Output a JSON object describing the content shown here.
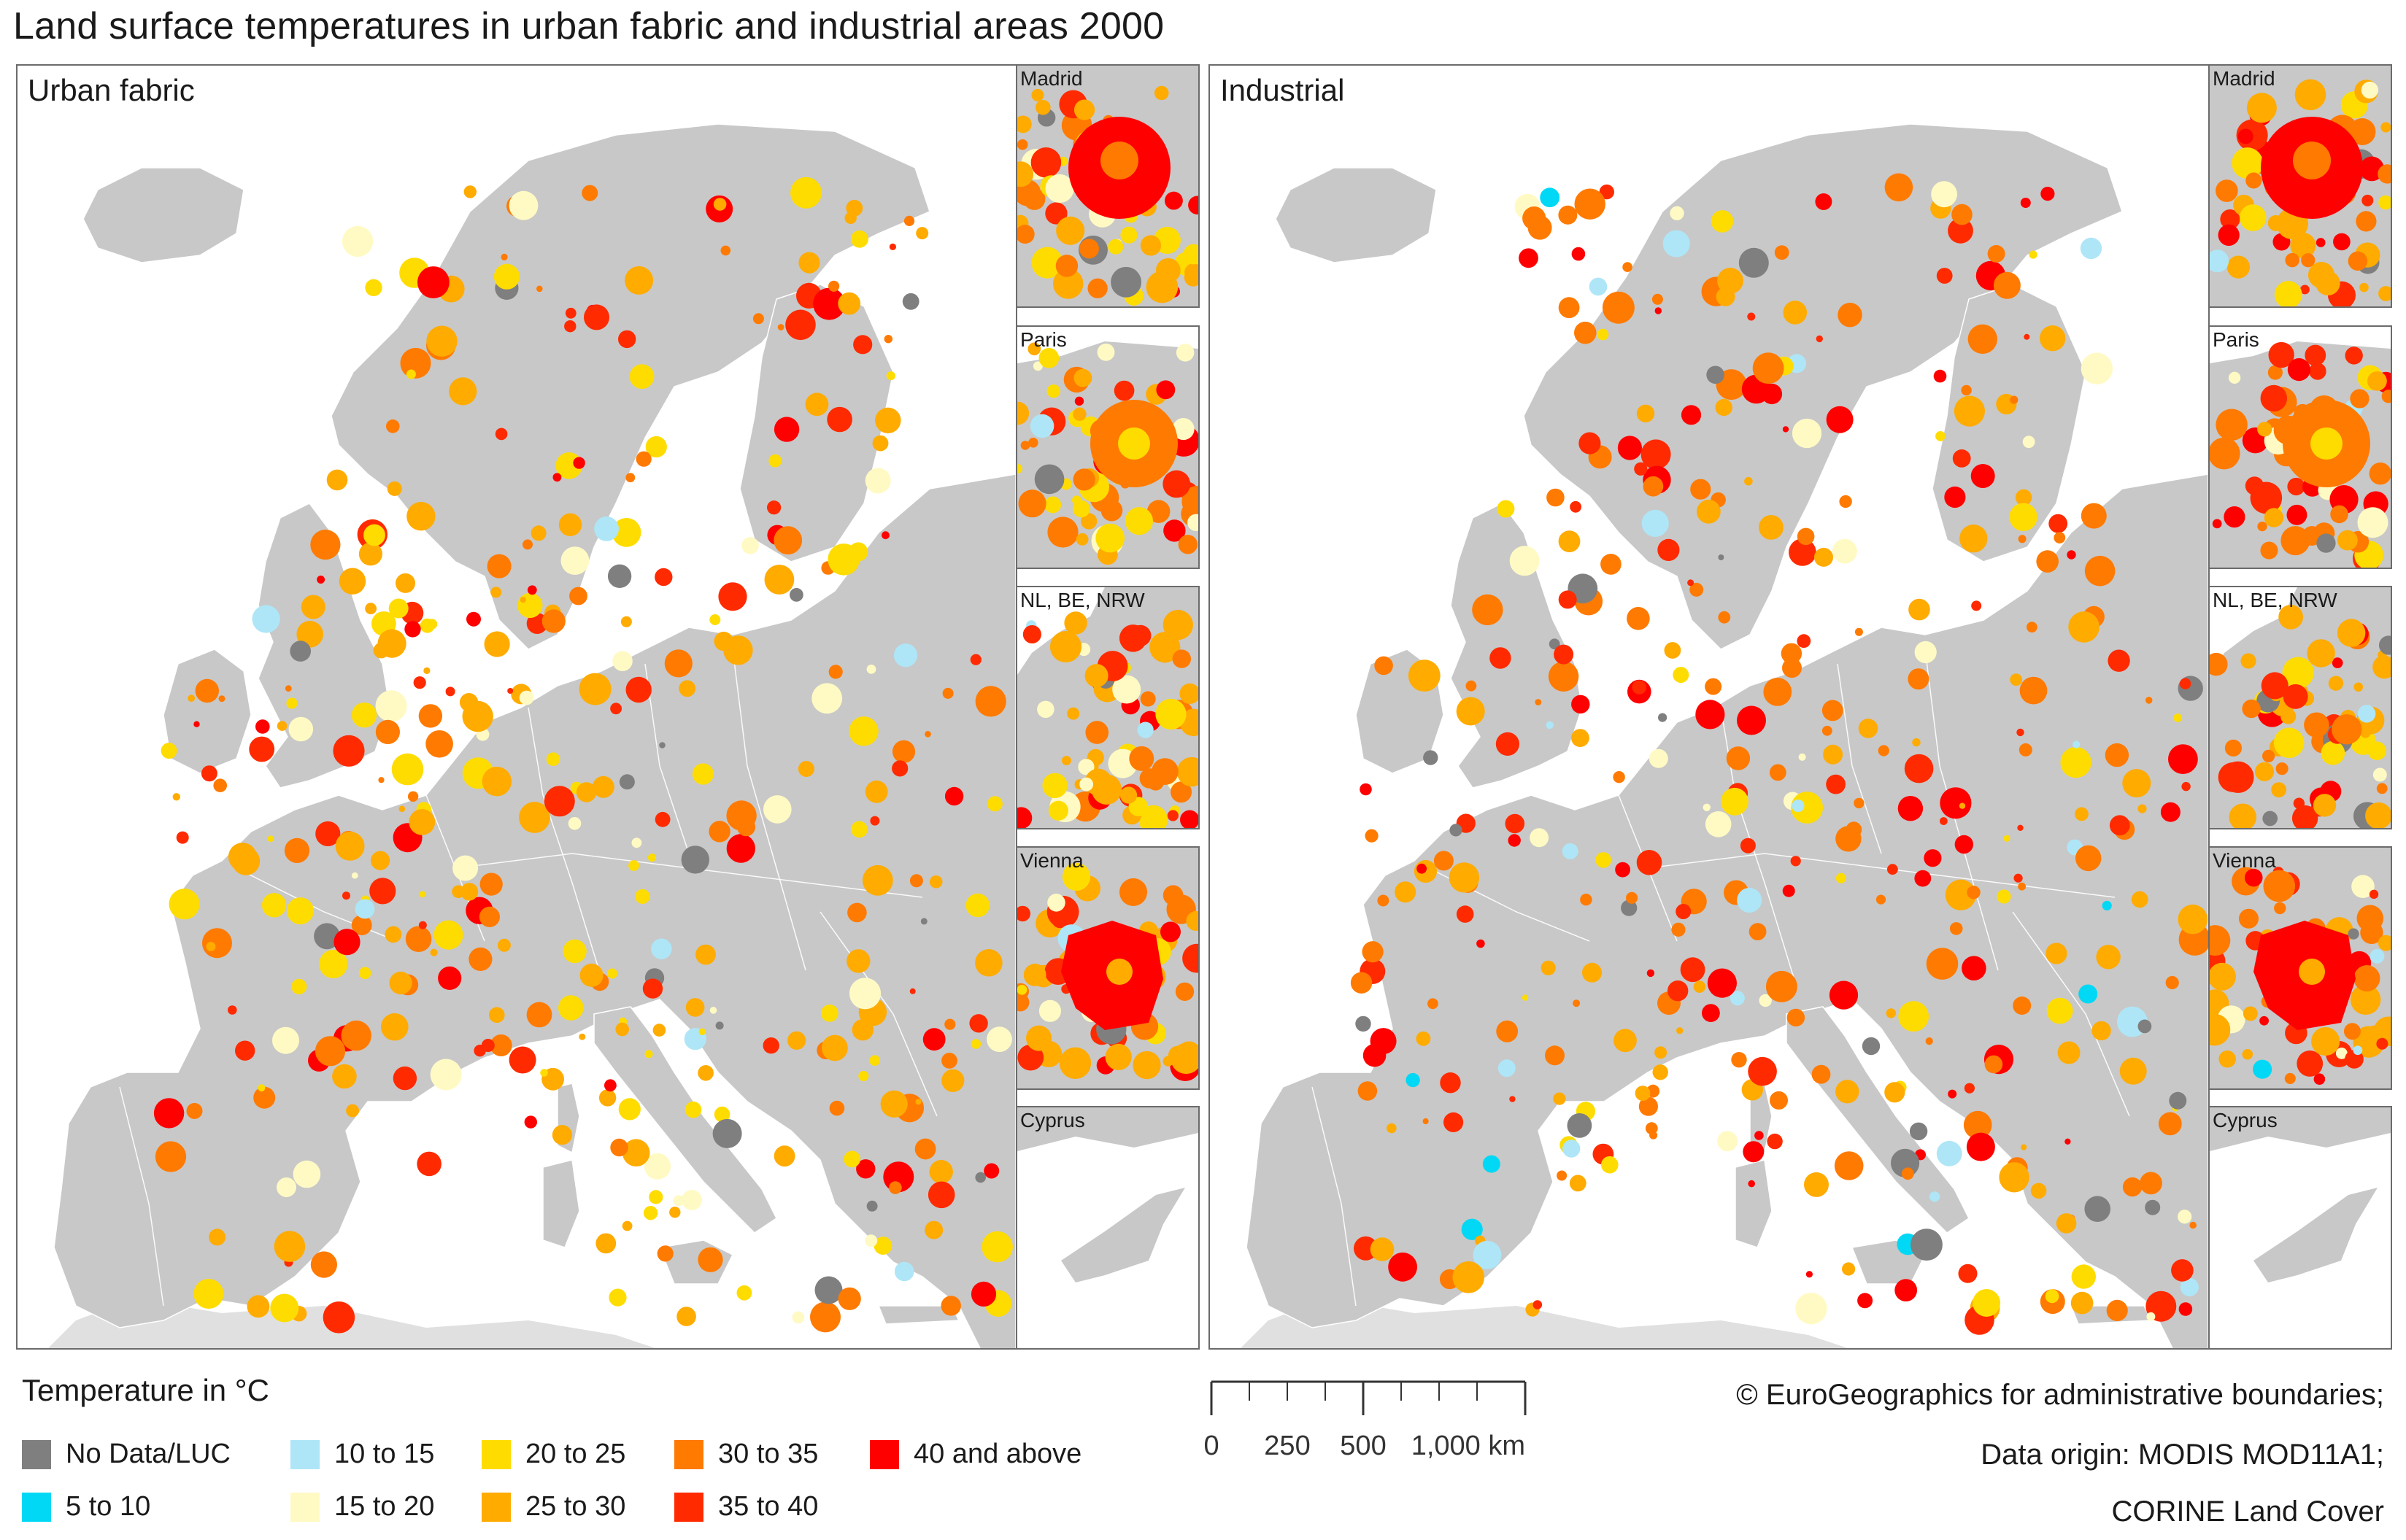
{
  "title": "Land surface temperatures in urban fabric and industrial areas 2000",
  "panels": {
    "urban": {
      "label": "Urban fabric"
    },
    "industrial": {
      "label": "Industrial"
    }
  },
  "insets": [
    "Madrid",
    "Paris",
    "NL, BE, NRW",
    "Vienna",
    "Cyprus"
  ],
  "legend": {
    "title": "Temperature in °C",
    "items": [
      {
        "label": "No Data/LUC",
        "color": "#7f7f7f"
      },
      {
        "label": "5 to 10",
        "color": "#00d8f5"
      },
      {
        "label": "10 to 15",
        "color": "#aee6f7"
      },
      {
        "label": "15 to 20",
        "color": "#fffac4"
      },
      {
        "label": "20 to 25",
        "color": "#ffdc00"
      },
      {
        "label": "25 to 30",
        "color": "#ffab00"
      },
      {
        "label": "30 to 35",
        "color": "#ff7a00"
      },
      {
        "label": "35 to 40",
        "color": "#ff2a00"
      },
      {
        "label": "40 and above",
        "color": "#ff0000"
      }
    ]
  },
  "scale": {
    "ticks": [
      "0",
      "250",
      "500",
      "1,000 km"
    ]
  },
  "credits": [
    "© EuroGeographics for administrative boundaries;",
    "Data origin: MODIS MOD11A1;",
    "CORINE Land Cover"
  ],
  "colors": {
    "land": "#c8c8c8",
    "outside_land": "#e0e0e0",
    "border": "#ffffff",
    "sea": "#ffffff"
  }
}
